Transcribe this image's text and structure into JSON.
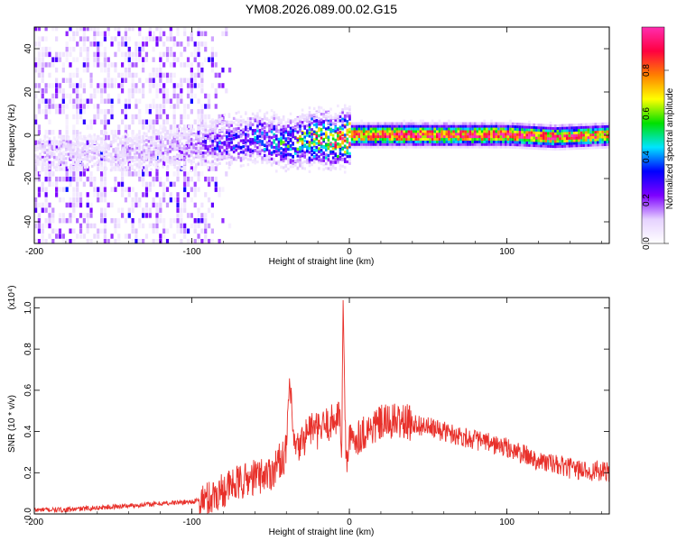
{
  "chart_data": [
    {
      "type": "heatmap",
      "title": "YM08.2026.089.00.02.G15",
      "xlabel": "Height of straight line (km)",
      "ylabel": "Frequency (Hz)",
      "xlim": [
        -200,
        165
      ],
      "ylim": [
        -50,
        50
      ],
      "xticks": [
        -200,
        -100,
        0,
        100
      ],
      "yticks": [
        -40,
        -20,
        0,
        20,
        40
      ],
      "colorbar": {
        "label": "Normalized spectral amplitude",
        "range": [
          0,
          1
        ],
        "ticks": [
          "0.0",
          "0.2",
          "0.4",
          "0.6",
          "0.8"
        ],
        "colors": [
          "#ffffff",
          "#e6d2ff",
          "#7d00ff",
          "#0000ff",
          "#00e5ff",
          "#00e000",
          "#ffff00",
          "#ff7f00",
          "#ff0040",
          "#ff2db0"
        ]
      },
      "ridge": {
        "x": [
          -200,
          -160,
          -120,
          -100,
          -80,
          -60,
          -40,
          -20,
          -10,
          0,
          20,
          60,
          100,
          130,
          165
        ],
        "frequency": [
          -9,
          -8,
          -7,
          -5,
          -3,
          -1,
          -4,
          -1,
          -3,
          0,
          0,
          0,
          0,
          -1,
          0
        ],
        "amplitude": [
          0.1,
          0.1,
          0.12,
          0.15,
          0.25,
          0.3,
          0.4,
          0.6,
          0.7,
          0.85,
          0.9,
          0.9,
          0.9,
          0.85,
          0.8
        ]
      },
      "noise_cutoff_x": -95,
      "grid": false
    },
    {
      "type": "line",
      "title": "",
      "xlabel": "Height of straight line (km)",
      "ylabel": "SNR (10 * v/v)",
      "yscale_note": "(x10⁴)",
      "xlim": [
        -200,
        165
      ],
      "ylim": [
        0,
        1.05
      ],
      "xticks": [
        -200,
        -100,
        0,
        100
      ],
      "yticks": [
        "0.0",
        "0.2",
        "0.4",
        "0.6",
        "0.8",
        "1.0"
      ],
      "color": "#e8302a",
      "series": [
        {
          "x": [
            -200,
            -180,
            -160,
            -140,
            -120,
            -100,
            -90,
            -80,
            -70,
            -60,
            -50,
            -45,
            -40,
            -38,
            -36,
            -34,
            -30,
            -25,
            -20,
            -15,
            -10,
            -6,
            -5,
            -4,
            -3,
            -2,
            0,
            10,
            20,
            30,
            40,
            60,
            80,
            100,
            120,
            140,
            165
          ],
          "y": [
            0.02,
            0.02,
            0.03,
            0.04,
            0.05,
            0.06,
            0.07,
            0.12,
            0.15,
            0.18,
            0.2,
            0.25,
            0.3,
            0.65,
            0.4,
            0.3,
            0.35,
            0.42,
            0.4,
            0.43,
            0.45,
            0.5,
            0.2,
            1.05,
            0.6,
            0.25,
            0.35,
            0.4,
            0.44,
            0.45,
            0.44,
            0.4,
            0.36,
            0.32,
            0.26,
            0.22,
            0.2
          ]
        }
      ],
      "grid": false
    }
  ]
}
